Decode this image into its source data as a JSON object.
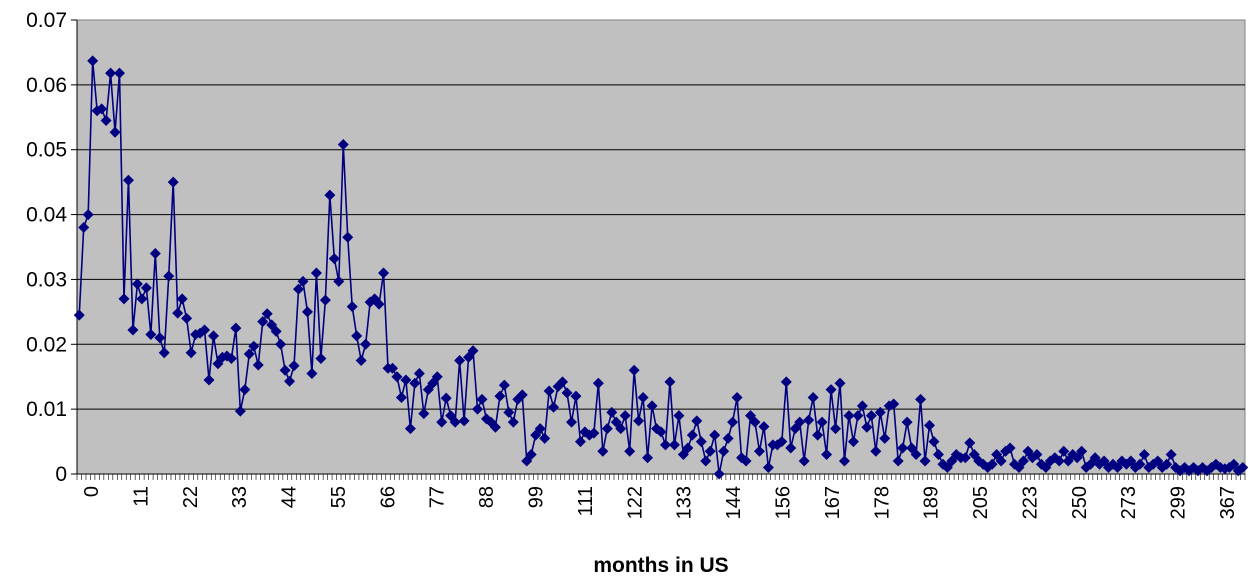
{
  "chart_data": {
    "type": "line",
    "xlabel": "months in US",
    "ylabel": "",
    "ylim": [
      0,
      0.07
    ],
    "yticks": [
      "0",
      "0.01",
      "0.02",
      "0.03",
      "0.04",
      "0.05",
      "0.06",
      "0.07"
    ],
    "xtick_labels": [
      "0",
      "11",
      "22",
      "33",
      "44",
      "55",
      "66",
      "77",
      "88",
      "99",
      "111",
      "122",
      "133",
      "144",
      "156",
      "167",
      "178",
      "189",
      "205",
      "223",
      "250",
      "273",
      "299",
      "367"
    ],
    "grid": "horizontal",
    "colors": {
      "plot_bg": "#c0c0c0",
      "series": "#000080",
      "gridline": "#000000"
    },
    "series": [
      {
        "marker": "diamond",
        "values": [
          0.0245,
          0.038,
          0.04,
          0.0637,
          0.056,
          0.0563,
          0.0545,
          0.0618,
          0.0527,
          0.0618,
          0.027,
          0.0453,
          0.0222,
          0.0293,
          0.027,
          0.0287,
          0.0215,
          0.034,
          0.021,
          0.0187,
          0.0305,
          0.045,
          0.0248,
          0.027,
          0.024,
          0.0187,
          0.0215,
          0.0217,
          0.0222,
          0.0145,
          0.0213,
          0.017,
          0.018,
          0.0182,
          0.0178,
          0.0225,
          0.0097,
          0.013,
          0.0185,
          0.0197,
          0.0168,
          0.0235,
          0.0247,
          0.023,
          0.022,
          0.02,
          0.016,
          0.0143,
          0.0167,
          0.0285,
          0.0297,
          0.025,
          0.0155,
          0.031,
          0.0178,
          0.0268,
          0.043,
          0.0332,
          0.0297,
          0.0508,
          0.0365,
          0.0258,
          0.0213,
          0.0175,
          0.02,
          0.0265,
          0.027,
          0.0262,
          0.031,
          0.0163,
          0.0163,
          0.015,
          0.0118,
          0.0145,
          0.007,
          0.014,
          0.0155,
          0.0093,
          0.013,
          0.014,
          0.015,
          0.008,
          0.0117,
          0.009,
          0.008,
          0.0175,
          0.0082,
          0.018,
          0.019,
          0.01,
          0.0115,
          0.0085,
          0.008,
          0.0072,
          0.012,
          0.0137,
          0.0095,
          0.008,
          0.0115,
          0.0122,
          0.002,
          0.003,
          0.006,
          0.007,
          0.0055,
          0.0128,
          0.0103,
          0.0135,
          0.0142,
          0.0125,
          0.008,
          0.012,
          0.005,
          0.0065,
          0.006,
          0.0063,
          0.014,
          0.0035,
          0.007,
          0.0095,
          0.008,
          0.007,
          0.009,
          0.0035,
          0.016,
          0.0082,
          0.0118,
          0.0025,
          0.0105,
          0.007,
          0.0065,
          0.0045,
          0.0142,
          0.0045,
          0.009,
          0.003,
          0.004,
          0.006,
          0.0082,
          0.005,
          0.002,
          0.0035,
          0.006,
          0.0,
          0.0035,
          0.0055,
          0.008,
          0.0118,
          0.0025,
          0.002,
          0.009,
          0.008,
          0.0035,
          0.0073,
          0.001,
          0.0045,
          0.0045,
          0.005,
          0.0142,
          0.004,
          0.007,
          0.008,
          0.002,
          0.0083,
          0.0118,
          0.006,
          0.008,
          0.003,
          0.013,
          0.007,
          0.014,
          0.002,
          0.009,
          0.005,
          0.009,
          0.0105,
          0.0072,
          0.009,
          0.0035,
          0.0095,
          0.0055,
          0.0105,
          0.0108,
          0.002,
          0.004,
          0.008,
          0.004,
          0.003,
          0.0115,
          0.002,
          0.0075,
          0.005,
          0.003,
          0.0015,
          0.001,
          0.002,
          0.003,
          0.0025,
          0.0025,
          0.0048,
          0.003,
          0.002,
          0.0015,
          0.001,
          0.0015,
          0.003,
          0.002,
          0.0035,
          0.004,
          0.0015,
          0.001,
          0.002,
          0.0035,
          0.0025,
          0.003,
          0.0015,
          0.001,
          0.002,
          0.0025,
          0.002,
          0.0035,
          0.002,
          0.003,
          0.0025,
          0.0035,
          0.001,
          0.0015,
          0.0025,
          0.0015,
          0.002,
          0.001,
          0.0015,
          0.001,
          0.002,
          0.0015,
          0.002,
          0.001,
          0.0015,
          0.003,
          0.001,
          0.0015,
          0.002,
          0.001,
          0.0015,
          0.003,
          0.001,
          0.0005,
          0.001,
          0.0005,
          0.001,
          0.0005,
          0.001,
          0.0005,
          0.001,
          0.0015,
          0.001,
          0.0008,
          0.001,
          0.0015,
          0.0005,
          0.001
        ]
      }
    ]
  }
}
